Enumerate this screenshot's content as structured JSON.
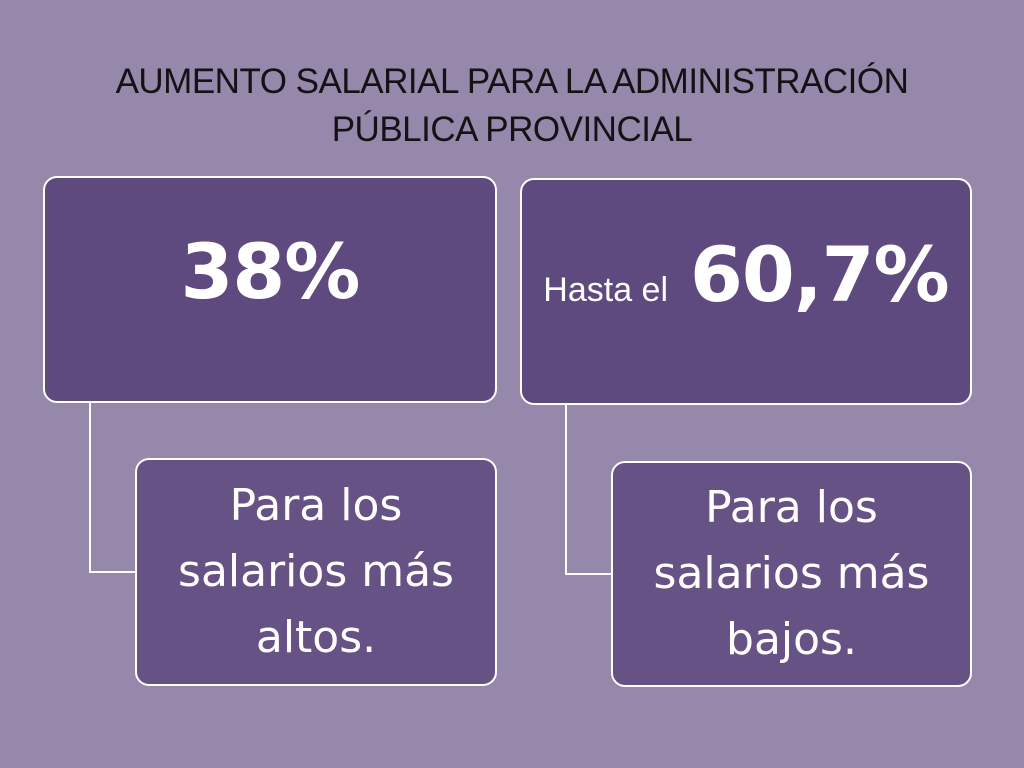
{
  "title": {
    "line1": "AUMENTO SALARIAL PARA LA ADMINISTRACIÓN",
    "line2": "PÚBLICA PROVINCIAL"
  },
  "left": {
    "value": "38%",
    "description_lines": [
      "Para los",
      "salarios más",
      "altos."
    ]
  },
  "right": {
    "prefix": "Hasta el",
    "value": "60,7%",
    "description_lines": [
      "Para los",
      "salarios más",
      "bajos."
    ]
  },
  "colors": {
    "background": "#9688aa",
    "box_top": "#5e4a7e",
    "box_sub": "#675285",
    "border": "#ffffff"
  }
}
